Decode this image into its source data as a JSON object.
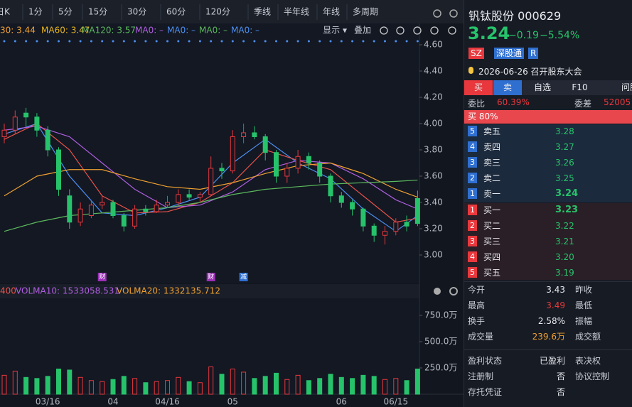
{
  "toolbar": {
    "tabs": [
      "日K",
      "1分",
      "5分",
      "15分",
      "30分",
      "60分",
      "120分",
      "季线",
      "半年线",
      "年线",
      "多周期"
    ]
  },
  "legend": {
    "ma30": "30: 3.44",
    "ma60": "MA60: 3.47",
    "ma120": "MA120: 3.57",
    "empty": [
      "MA0: –",
      "MA0: –",
      "MA0: –",
      "MA0: –"
    ],
    "show": "显示 ▾",
    "overlay": "叠加"
  },
  "price_axis": {
    "ylim": [
      2.8,
      4.6
    ],
    "yticks": [
      {
        "value": 4.6,
        "label": "4.60"
      },
      {
        "value": 4.4,
        "label": "4.40"
      },
      {
        "value": 4.2,
        "label": "4.20"
      },
      {
        "value": 4.0,
        "label": "4.00"
      },
      {
        "value": 3.8,
        "label": "3.80"
      },
      {
        "value": 3.6,
        "label": "3.60"
      },
      {
        "value": 3.4,
        "label": "3.40"
      },
      {
        "value": 3.2,
        "label": "3.20"
      },
      {
        "value": 3.0,
        "label": "3.00"
      }
    ]
  },
  "candles": [
    [
      3.9,
      4.0,
      3.85,
      3.95
    ],
    [
      3.95,
      4.1,
      3.92,
      4.05
    ],
    [
      4.08,
      4.12,
      3.98,
      4.05
    ],
    [
      4.05,
      4.08,
      3.9,
      3.95
    ],
    [
      3.95,
      3.98,
      3.75,
      3.8
    ],
    [
      3.8,
      3.82,
      3.45,
      3.5
    ],
    [
      3.45,
      3.5,
      3.2,
      3.25
    ],
    [
      3.25,
      3.4,
      3.22,
      3.35
    ],
    [
      3.3,
      3.42,
      3.28,
      3.38
    ],
    [
      3.38,
      3.45,
      3.35,
      3.4
    ],
    [
      3.4,
      3.42,
      3.28,
      3.3
    ],
    [
      3.3,
      3.32,
      3.18,
      3.22
    ],
    [
      3.22,
      3.38,
      3.2,
      3.35
    ],
    [
      3.35,
      3.38,
      3.3,
      3.33
    ],
    [
      3.33,
      3.42,
      3.32,
      3.38
    ],
    [
      3.38,
      3.45,
      3.36,
      3.4
    ],
    [
      3.4,
      3.5,
      3.38,
      3.46
    ],
    [
      3.46,
      3.5,
      3.42,
      3.44
    ],
    [
      3.44,
      3.48,
      3.4,
      3.46
    ],
    [
      3.46,
      3.75,
      3.45,
      3.66
    ],
    [
      3.66,
      3.7,
      3.58,
      3.64
    ],
    [
      3.64,
      3.95,
      3.62,
      3.9
    ],
    [
      3.9,
      4.0,
      3.85,
      3.93
    ],
    [
      3.93,
      3.98,
      3.88,
      3.9
    ],
    [
      3.9,
      3.92,
      3.72,
      3.78
    ],
    [
      3.78,
      3.8,
      3.55,
      3.6
    ],
    [
      3.6,
      3.7,
      3.55,
      3.66
    ],
    [
      3.66,
      3.8,
      3.62,
      3.75
    ],
    [
      3.75,
      3.78,
      3.65,
      3.7
    ],
    [
      3.7,
      3.72,
      3.55,
      3.6
    ],
    [
      3.6,
      3.62,
      3.4,
      3.45
    ],
    [
      3.45,
      3.48,
      3.36,
      3.4
    ],
    [
      3.4,
      3.42,
      3.3,
      3.35
    ],
    [
      3.35,
      3.36,
      3.18,
      3.22
    ],
    [
      3.22,
      3.24,
      3.1,
      3.15
    ],
    [
      3.15,
      3.22,
      3.08,
      3.18
    ],
    [
      3.18,
      3.28,
      3.15,
      3.25
    ],
    [
      3.25,
      3.3,
      3.18,
      3.22
    ],
    [
      3.43,
      3.49,
      3.22,
      3.24
    ]
  ],
  "ma_x": [
    0,
    3,
    6,
    9,
    12,
    15,
    18,
    21,
    24,
    27,
    30,
    33,
    36,
    38
  ],
  "ma_lines": [
    {
      "color": "#4d8ff0",
      "values": [
        3.92,
        4.0,
        3.6,
        3.32,
        3.3,
        3.36,
        3.44,
        3.7,
        3.88,
        3.7,
        3.58,
        3.35,
        3.18,
        3.3
      ]
    },
    {
      "color": "#e8534a",
      "values": [
        3.88,
        4.0,
        3.8,
        3.45,
        3.32,
        3.33,
        3.4,
        3.55,
        3.8,
        3.72,
        3.65,
        3.45,
        3.25,
        3.28
      ]
    },
    {
      "color": "#b05ee0",
      "values": [
        3.95,
        3.98,
        3.9,
        3.7,
        3.5,
        3.36,
        3.38,
        3.48,
        3.65,
        3.72,
        3.7,
        3.58,
        3.42,
        3.35
      ]
    },
    {
      "color": "#f0a030",
      "values": [
        3.45,
        3.6,
        3.65,
        3.65,
        3.58,
        3.52,
        3.5,
        3.55,
        3.62,
        3.68,
        3.7,
        3.62,
        3.5,
        3.44
      ]
    },
    {
      "color": "#5cb85c",
      "values": [
        3.18,
        3.25,
        3.3,
        3.32,
        3.34,
        3.36,
        3.4,
        3.46,
        3.5,
        3.52,
        3.54,
        3.55,
        3.56,
        3.57
      ]
    }
  ],
  "events": [
    {
      "index": 9,
      "label": "财"
    },
    {
      "index": 19,
      "label": "财"
    },
    {
      "index": 22,
      "label": "减"
    }
  ],
  "volume_legend": {
    "first": "400",
    "ma10": "VOLMA10: 1533058.531",
    "ma20": "VOLMA20: 1332135.712"
  },
  "volume_axis": {
    "ylim": [
      0,
      800
    ],
    "yticks": [
      {
        "value": 750,
        "label": "750.0万"
      },
      {
        "value": 500,
        "label": "500.0万"
      },
      {
        "value": 250,
        "label": "250.0万"
      }
    ]
  },
  "volumes": [
    180,
    220,
    160,
    150,
    170,
    240,
    230,
    160,
    130,
    120,
    140,
    170,
    150,
    110,
    120,
    130,
    160,
    120,
    110,
    260,
    190,
    240,
    210,
    150,
    170,
    200,
    140,
    180,
    130,
    150,
    190,
    160,
    150,
    180,
    170,
    140,
    150,
    130,
    240
  ],
  "x_labels": [
    {
      "index": 4,
      "label": "03/16"
    },
    {
      "index": 10,
      "label": "04"
    },
    {
      "index": 15,
      "label": "04/16"
    },
    {
      "index": 21,
      "label": "05"
    },
    {
      "index": 31,
      "label": "06"
    },
    {
      "index": 36,
      "label": "06/15"
    }
  ],
  "quote": {
    "name": "钒钛股份 000629",
    "price": "3.24",
    "change": "−0.19",
    "pct": "−5.54%",
    "tags": [
      "SZ",
      "深股通",
      "R"
    ],
    "event": "2026-06-26 召开股东大会"
  },
  "actions": [
    "买",
    "卖",
    "自选",
    "F10",
    "问股"
  ],
  "ratio": {
    "label1": "委比",
    "value1": "60.39%",
    "label2": "委差",
    "value2": "52005"
  },
  "buy_pct": "买 80%",
  "asks": [
    {
      "n": "5",
      "name": "卖五",
      "price": "3.28"
    },
    {
      "n": "4",
      "name": "卖四",
      "price": "3.27"
    },
    {
      "n": "3",
      "name": "卖三",
      "price": "3.26"
    },
    {
      "n": "2",
      "name": "卖二",
      "price": "3.25"
    },
    {
      "n": "1",
      "name": "卖一",
      "price": "3.24"
    }
  ],
  "bids": [
    {
      "n": "1",
      "name": "买一",
      "price": "3.23"
    },
    {
      "n": "2",
      "name": "买二",
      "price": "3.22"
    },
    {
      "n": "3",
      "name": "买三",
      "price": "3.21"
    },
    {
      "n": "4",
      "name": "买四",
      "price": "3.20"
    },
    {
      "n": "5",
      "name": "买五",
      "price": "3.19"
    }
  ],
  "stats": [
    [
      "今开",
      "3.43",
      "昨收"
    ],
    [
      "最高",
      "3.49",
      "最低"
    ],
    [
      "换手",
      "2.58%",
      "振幅"
    ],
    [
      "成交量",
      "239.6万",
      "成交额"
    ]
  ],
  "info": [
    [
      "盈利状态",
      "已盈利",
      "表决权"
    ],
    [
      "注册制",
      "否",
      "协议控制"
    ],
    [
      "存托凭证",
      "否",
      ""
    ]
  ]
}
